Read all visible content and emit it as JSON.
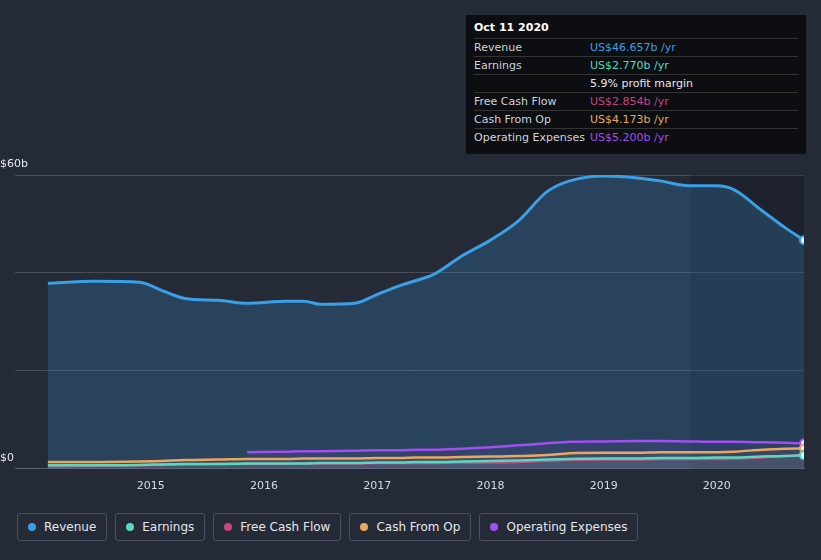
{
  "chart_data": {
    "type": "line",
    "x": [
      2014.09,
      2014.5,
      2014.9,
      2015.1,
      2015.3,
      2015.6,
      2015.85,
      2016.2,
      2016.35,
      2016.5,
      2016.8,
      2017.0,
      2017.2,
      2017.35,
      2017.5,
      2017.75,
      2018.0,
      2018.25,
      2018.5,
      2018.7,
      2019.0,
      2019.3,
      2019.5,
      2019.75,
      2020.0,
      2020.15,
      2020.4,
      2020.6,
      2020.77
    ],
    "xlim": [
      2013.8,
      2020.77
    ],
    "xticks": [
      2015,
      2016,
      2017,
      2018,
      2019,
      2020
    ],
    "ylim": [
      0,
      60
    ],
    "yticks": [
      {
        "value": 0,
        "label": "US$0"
      },
      {
        "value": 20,
        "label": null
      },
      {
        "value": 40,
        "label": null
      },
      {
        "value": 60,
        "label": "US$60b"
      }
    ],
    "grid": true,
    "legend": "bottom",
    "series": [
      {
        "name": "Revenue",
        "color": "#3a9fe6",
        "values": [
          37.9,
          38.3,
          38.1,
          36.4,
          34.8,
          34.4,
          33.8,
          34.2,
          34.2,
          33.6,
          33.8,
          35.6,
          37.4,
          38.5,
          39.7,
          43.5,
          46.7,
          50.7,
          56.6,
          58.8,
          59.8,
          59.4,
          58.8,
          57.8,
          57.8,
          57.0,
          52.7,
          49.3,
          46.66
        ]
      },
      {
        "name": "Earnings",
        "color": "#58d8c0",
        "values": [
          0.7,
          0.7,
          0.8,
          0.9,
          1.0,
          1.0,
          1.1,
          1.1,
          1.1,
          1.2,
          1.2,
          1.3,
          1.3,
          1.4,
          1.4,
          1.5,
          1.6,
          1.7,
          1.9,
          2.0,
          2.1,
          2.1,
          2.2,
          2.2,
          2.3,
          2.3,
          2.5,
          2.6,
          2.77
        ]
      },
      {
        "name": "Free Cash Flow",
        "color": "#c8457f",
        "values": [
          0.5,
          0.6,
          0.7,
          0.8,
          0.9,
          1.0,
          1.0,
          1.0,
          1.1,
          1.1,
          1.1,
          1.2,
          1.2,
          1.2,
          1.2,
          1.3,
          1.3,
          1.4,
          1.6,
          1.8,
          1.9,
          1.9,
          2.0,
          2.0,
          2.0,
          2.1,
          2.3,
          2.6,
          2.85
        ]
      },
      {
        "name": "Cash From Op",
        "color": "#e8a860",
        "values": [
          1.4,
          1.4,
          1.5,
          1.6,
          1.8,
          1.9,
          2.0,
          2.0,
          2.1,
          2.1,
          2.1,
          2.2,
          2.2,
          2.3,
          2.3,
          2.4,
          2.5,
          2.6,
          2.8,
          3.2,
          3.3,
          3.3,
          3.4,
          3.4,
          3.4,
          3.5,
          3.9,
          4.1,
          4.17
        ]
      },
      {
        "name": "Operating Expenses",
        "color": "#a24ff0",
        "values": [
          null,
          null,
          null,
          null,
          null,
          null,
          3.4,
          3.5,
          3.6,
          3.6,
          3.7,
          3.8,
          3.8,
          3.9,
          3.9,
          4.1,
          4.4,
          4.8,
          5.2,
          5.5,
          5.6,
          5.7,
          5.7,
          5.6,
          5.5,
          5.5,
          5.4,
          5.3,
          5.2
        ]
      }
    ],
    "annotation": {
      "title": "Oct 11 2020",
      "rows": [
        {
          "series": "Revenue",
          "text": "US$46.657b /yr"
        },
        {
          "series": "Earnings",
          "text": "US$2.770b /yr"
        },
        {
          "text": "5.9% profit margin"
        },
        {
          "series": "Free Cash Flow",
          "text": "US$2.854b /yr"
        },
        {
          "series": "Cash From Op",
          "text": "US$4.173b /yr"
        },
        {
          "series": "Operating Expenses",
          "text": "US$5.200b /yr"
        }
      ]
    }
  }
}
